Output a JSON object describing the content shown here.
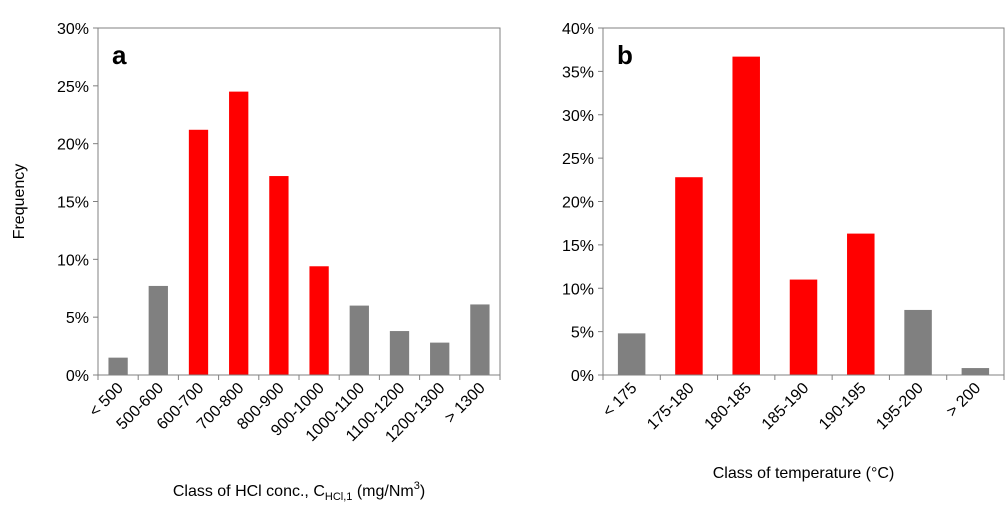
{
  "chart_data": [
    {
      "type": "bar",
      "panel": "a",
      "ylabel": "Frequency",
      "xlabel": {
        "text": "Class of HCl conc., C",
        "sub": "HCl,1",
        "unit": " (mg/Nm",
        "sup": "3",
        "close": ")"
      },
      "categories": [
        "< 500",
        "500-600",
        "600-700",
        "700-800",
        "800-900",
        "900-1000",
        "1000-1100",
        "1100-1200",
        "1200-1300",
        "> 1300"
      ],
      "values": [
        1.5,
        7.7,
        21.2,
        24.5,
        17.2,
        9.4,
        6.0,
        3.8,
        2.8,
        6.1
      ],
      "colors": [
        "#808080",
        "#808080",
        "#ff0000",
        "#ff0000",
        "#ff0000",
        "#ff0000",
        "#808080",
        "#808080",
        "#808080",
        "#808080"
      ],
      "ylim": [
        0,
        30
      ],
      "yticks": [
        {
          "value": 0,
          "label": "0%"
        },
        {
          "value": 5,
          "label": "5%"
        },
        {
          "value": 10,
          "label": "10%"
        },
        {
          "value": 15,
          "label": "15%"
        },
        {
          "value": 20,
          "label": "20%"
        },
        {
          "value": 25,
          "label": "25%"
        },
        {
          "value": 30,
          "label": "30%"
        }
      ]
    },
    {
      "type": "bar",
      "panel": "b",
      "xlabel": {
        "text": "Class of temperature (°C)"
      },
      "categories": [
        "< 175",
        "175-180",
        "180-185",
        "185-190",
        "190-195",
        "195-200",
        "> 200"
      ],
      "values": [
        4.8,
        22.8,
        36.7,
        11.0,
        16.3,
        7.5,
        0.8
      ],
      "colors": [
        "#808080",
        "#ff0000",
        "#ff0000",
        "#ff0000",
        "#ff0000",
        "#808080",
        "#808080"
      ],
      "ylim": [
        0,
        40
      ],
      "yticks": [
        {
          "value": 0,
          "label": "0%"
        },
        {
          "value": 5,
          "label": "5%"
        },
        {
          "value": 10,
          "label": "10%"
        },
        {
          "value": 15,
          "label": "15%"
        },
        {
          "value": 20,
          "label": "20%"
        },
        {
          "value": 25,
          "label": "25%"
        },
        {
          "value": 30,
          "label": "30%"
        },
        {
          "value": 35,
          "label": "35%"
        },
        {
          "value": 40,
          "label": "40%"
        }
      ]
    }
  ]
}
